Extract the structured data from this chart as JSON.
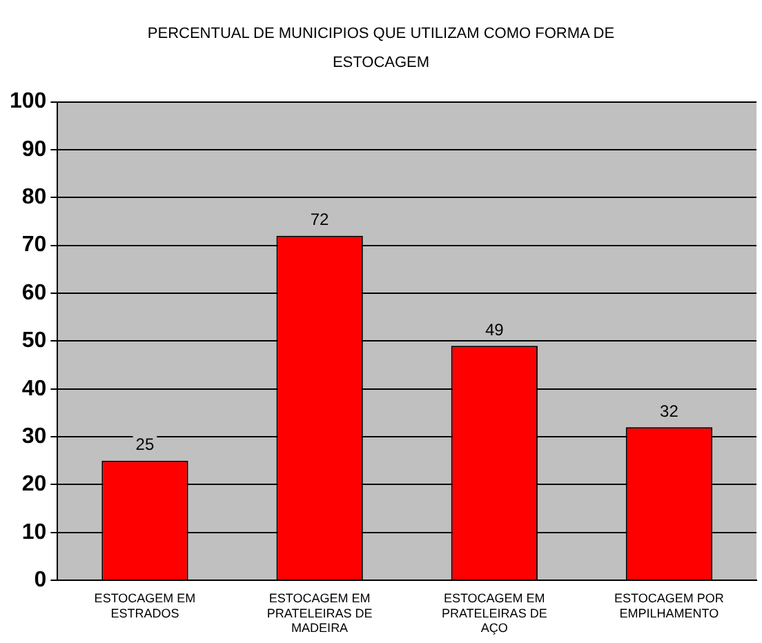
{
  "chart_data": {
    "type": "bar",
    "title": "PERCENTUAL DE MUNICIPIOS QUE UTILIZAM COMO FORMA DE ESTOCAGEM",
    "categories": [
      "ESTOCAGEM EM ESTRADOS",
      "ESTOCAGEM EM PRATELEIRAS DE MADEIRA",
      "ESTOCAGEM EM PRATELEIRAS DE AÇO",
      "ESTOCAGEM POR EMPILHAMENTO"
    ],
    "values": [
      25,
      72,
      49,
      32
    ],
    "color": "#ff0000",
    "ylim": [
      0,
      100
    ],
    "yticks": [
      0,
      10,
      20,
      30,
      40,
      50,
      60,
      70,
      80,
      90,
      100
    ],
    "grid": "y",
    "data_labels": true,
    "legend": false
  }
}
